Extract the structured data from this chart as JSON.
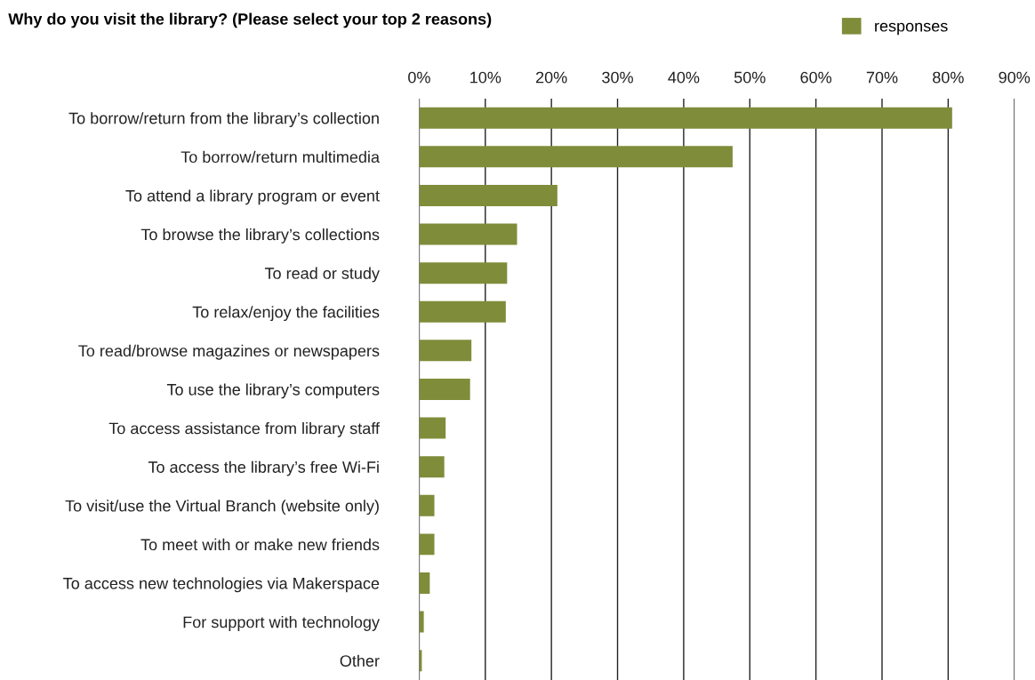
{
  "chart_data": {
    "type": "bar",
    "orientation": "horizontal",
    "title": "Why do you visit the library? (Please select your top 2 reasons)",
    "categories": [
      "To borrow/return from the library’s collection",
      "To borrow/return multimedia",
      "To attend a library program or event",
      "To browse the library’s collections",
      "To read or study",
      "To relax/enjoy the facilities",
      "To read/browse magazines or newspapers",
      "To use the library’s computers",
      "To access assistance from library staff",
      "To access the library’s free Wi-Fi",
      "To visit/use the Virtual Branch (website only)",
      "To meet with or make new friends",
      "To access new technologies via Makerspace",
      "For support with technology",
      "Other"
    ],
    "series": [
      {
        "name": "responses",
        "color": "#7f8c3a",
        "values": [
          80.6,
          47.4,
          20.9,
          14.8,
          13.3,
          13.1,
          7.9,
          7.7,
          4.0,
          3.8,
          2.3,
          2.3,
          1.6,
          0.7,
          0.4
        ]
      }
    ],
    "xlim": [
      0,
      90
    ],
    "xticks": [
      {
        "value": 0,
        "label": "0%"
      },
      {
        "value": 10,
        "label": "10%"
      },
      {
        "value": 20,
        "label": "20%"
      },
      {
        "value": 30,
        "label": "30%"
      },
      {
        "value": 40,
        "label": "40%"
      },
      {
        "value": 50,
        "label": "50%"
      },
      {
        "value": 60,
        "label": "60%"
      },
      {
        "value": 70,
        "label": "70%"
      },
      {
        "value": 80,
        "label": "80%"
      },
      {
        "value": 90,
        "label": "90%"
      }
    ],
    "grid": "x",
    "legend": "top right"
  }
}
